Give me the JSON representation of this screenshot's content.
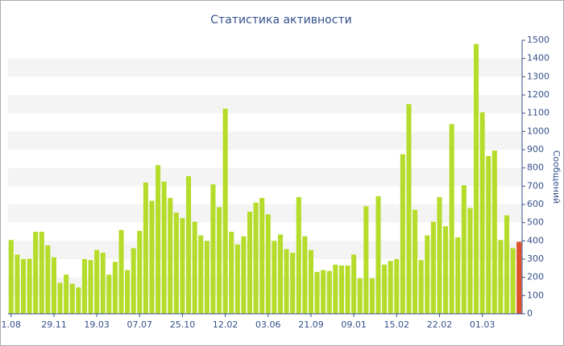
{
  "chart_data": {
    "type": "bar",
    "title": "Статистика активности",
    "y_label": "Сообщений",
    "categories": [
      "1.08",
      null,
      null,
      null,
      null,
      null,
      null,
      "29.11",
      null,
      null,
      null,
      null,
      null,
      null,
      "19.03",
      null,
      null,
      null,
      null,
      null,
      null,
      "07.07",
      null,
      null,
      null,
      null,
      null,
      null,
      "25.10",
      null,
      null,
      null,
      null,
      null,
      null,
      "12.02",
      null,
      null,
      null,
      null,
      null,
      null,
      "03.06",
      null,
      null,
      null,
      null,
      null,
      null,
      "21.09",
      null,
      null,
      null,
      null,
      null,
      null,
      "09.01",
      null,
      null,
      null,
      null,
      null,
      null,
      "15.02",
      null,
      null,
      null,
      null,
      null,
      null,
      "22.02",
      null,
      null,
      null,
      null,
      null,
      null,
      "01.03",
      null,
      null,
      null,
      null,
      null,
      null
    ],
    "values": [
      405,
      325,
      300,
      302,
      450,
      450,
      375,
      310,
      170,
      215,
      165,
      145,
      300,
      295,
      350,
      335,
      215,
      285,
      460,
      240,
      360,
      455,
      720,
      620,
      815,
      725,
      635,
      555,
      525,
      755,
      505,
      430,
      400,
      710,
      585,
      1125,
      450,
      380,
      425,
      560,
      610,
      635,
      545,
      400,
      435,
      355,
      335,
      640,
      425,
      350,
      230,
      240,
      235,
      270,
      265,
      265,
      325,
      195,
      590,
      195,
      645,
      270,
      290,
      300,
      875,
      1150,
      570,
      295,
      430,
      505,
      640,
      480,
      1040,
      420,
      705,
      580,
      1480,
      1105,
      865,
      895,
      405,
      540,
      360,
      395
    ],
    "color": "#b5dc2a",
    "last_color": "#e0502a",
    "ylim": [
      0,
      1500
    ],
    "yticks": [
      0,
      100,
      200,
      300,
      400,
      500,
      600,
      700,
      800,
      900,
      1000,
      1100,
      1200,
      1300,
      1400,
      1500
    ],
    "grid": "bands"
  }
}
